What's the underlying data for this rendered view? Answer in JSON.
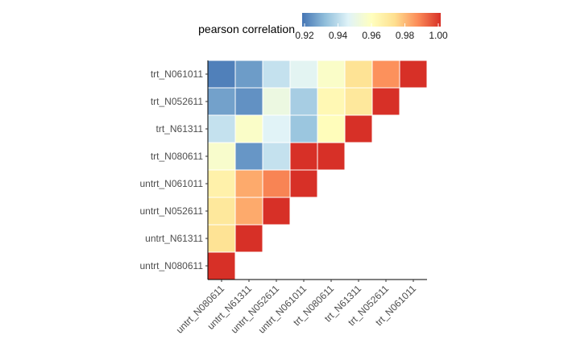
{
  "chart_data": {
    "type": "heatmap",
    "title": "",
    "xlabel": "",
    "ylabel": "",
    "samples": [
      "untrt_N080611",
      "untrt_N61311",
      "untrt_N052611",
      "untrt_N061011",
      "trt_N080611",
      "trt_N61311",
      "trt_N052611",
      "trt_N061011"
    ],
    "matrix_lower_triangle": [
      [
        1.0
      ],
      [
        0.972,
        1.0
      ],
      [
        0.97,
        0.982,
        1.0
      ],
      [
        0.966,
        0.982,
        0.988,
        1.0
      ],
      [
        0.957,
        0.926,
        0.942,
        1.0,
        1.0
      ],
      [
        0.942,
        0.958,
        0.947,
        0.935,
        0.961,
        1.0
      ],
      [
        0.928,
        0.925,
        0.952,
        0.937,
        0.963,
        0.97,
        1.0
      ],
      [
        0.922,
        0.927,
        0.942,
        0.948,
        0.958,
        0.972,
        0.986,
        1.0
      ]
    ],
    "legend": {
      "title": "pearson correlation",
      "min": 0.92,
      "max": 1.0,
      "ticks": [
        "0.92",
        "0.94",
        "0.96",
        "0.98",
        "1.00"
      ],
      "placement": "top"
    },
    "colors": [
      "#4575b4",
      "#91bfdb",
      "#e0f3f8",
      "#ffffbf",
      "#fee090",
      "#fc8d59",
      "#d73027"
    ],
    "grid": false
  }
}
